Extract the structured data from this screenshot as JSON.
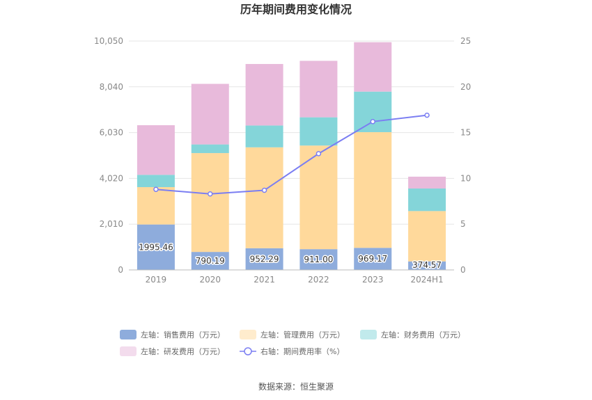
{
  "chart_data": {
    "type": "bar",
    "stacked": true,
    "title": "历年期间费用变化情况",
    "categories": [
      "2019",
      "2020",
      "2021",
      "2022",
      "2023",
      "2024H1"
    ],
    "y_left": {
      "min": 0,
      "max": 10050,
      "ticks": [
        "0",
        "2,010",
        "4,020",
        "6,030",
        "8,040",
        "10,050"
      ]
    },
    "y_right": {
      "min": 0,
      "max": 25,
      "ticks": [
        "0",
        "5",
        "10",
        "15",
        "20",
        "25"
      ]
    },
    "series": [
      {
        "name": "左轴：销售费用（万元）",
        "axis": "left",
        "color": "#8eacdc",
        "values": [
          1995.46,
          790.19,
          952.29,
          911.0,
          969.17,
          374.57
        ],
        "labels": [
          "1995.46",
          "790.19",
          "952.29",
          "911.00",
          "969.17",
          "374.57"
        ]
      },
      {
        "name": "左轴：管理费用（万元）",
        "axis": "left",
        "color": "#ffd99b",
        "values": [
          1640,
          4340,
          4430,
          4550,
          5080,
          2210
        ]
      },
      {
        "name": "左轴：财务费用（万元）",
        "axis": "left",
        "color": "#84d5d9",
        "values": [
          540,
          380,
          960,
          1240,
          1780,
          990
        ]
      },
      {
        "name": "左轴：研发费用（万元）",
        "axis": "left",
        "color": "#e8badb",
        "values": [
          2180,
          2660,
          2700,
          2480,
          2170,
          520
        ]
      }
    ],
    "line": {
      "name": "右轴：期间费用率（%）",
      "axis": "right",
      "color": "#7b7ef2",
      "values": [
        8.8,
        8.3,
        8.7,
        12.7,
        16.2,
        16.9
      ]
    }
  },
  "source": "数据来源：恒生聚源"
}
